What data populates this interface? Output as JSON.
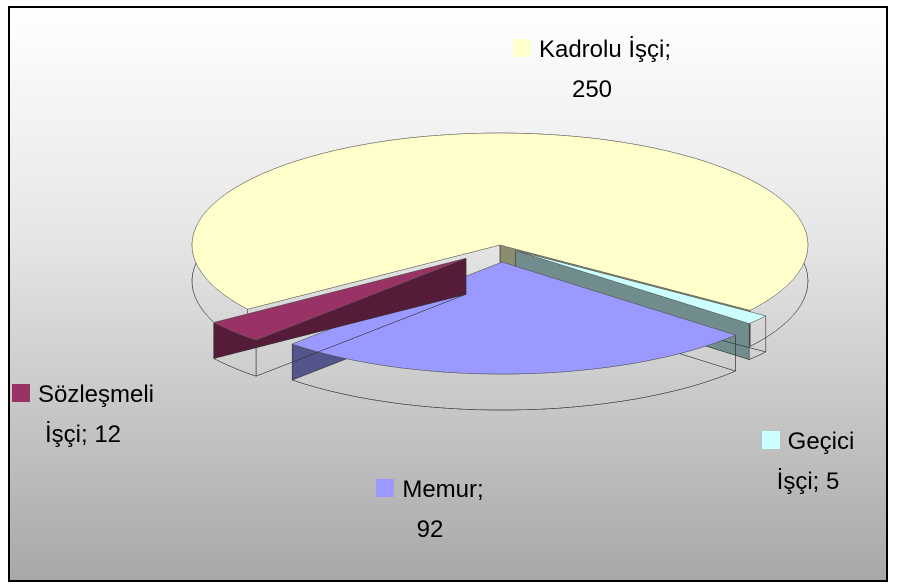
{
  "chart_data": {
    "type": "pie3d",
    "values": [
      250,
      5,
      92,
      12
    ],
    "value_labels": [
      "Kadrolu İşçi; 250",
      "Geçici İşçi; 5",
      "Memur; 92",
      "Sözleşmeli İşçi; 12"
    ],
    "colors": [
      "#ffffcc",
      "#ccffff",
      "#9999ff",
      "#993366"
    ]
  }
}
